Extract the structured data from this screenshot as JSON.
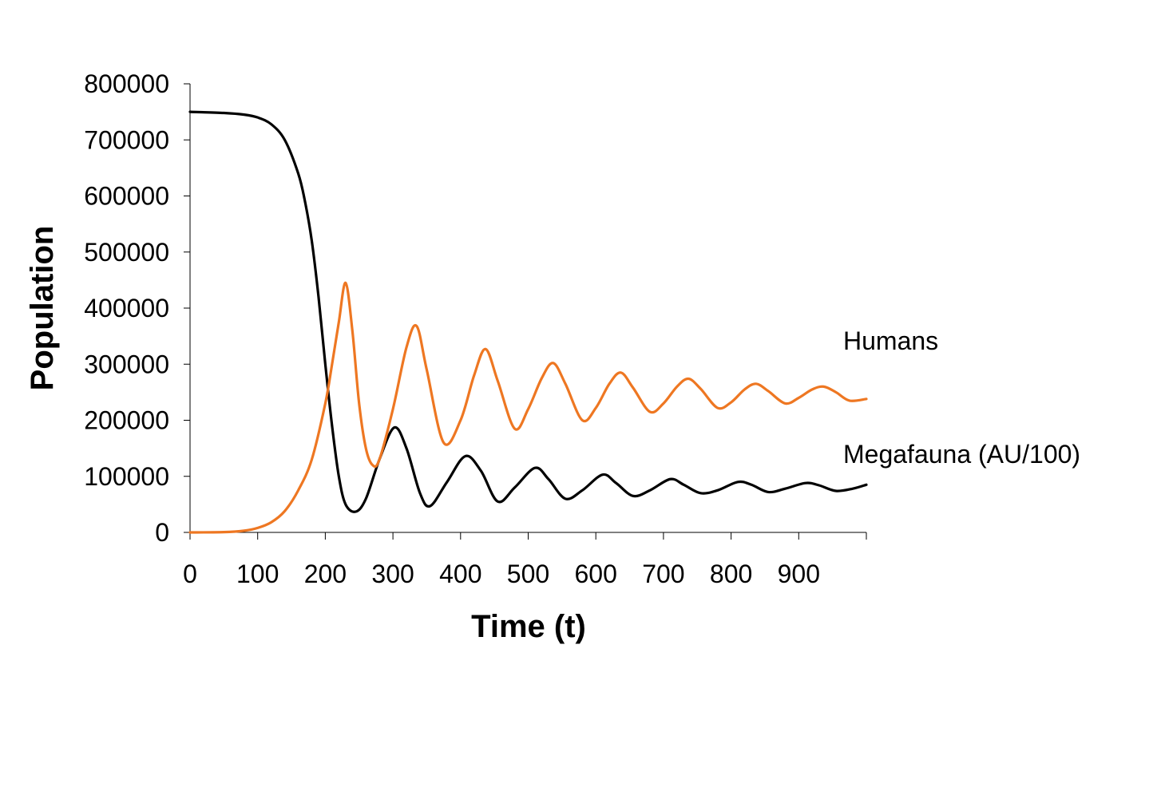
{
  "chart_data": {
    "type": "line",
    "title": "",
    "xlabel": "Time (t)",
    "ylabel": "Population",
    "xlim": [
      0,
      1000
    ],
    "ylim": [
      0,
      800000
    ],
    "x_ticks": [
      0,
      100,
      200,
      300,
      400,
      500,
      600,
      700,
      800,
      900
    ],
    "x_tick_labels": [
      "0",
      "100",
      "200",
      "300",
      "400",
      "500",
      "600",
      "700",
      "800",
      "900"
    ],
    "y_ticks": [
      0,
      100000,
      200000,
      300000,
      400000,
      500000,
      600000,
      700000,
      800000
    ],
    "y_tick_labels": [
      "0",
      "100000",
      "200000",
      "300000",
      "400000",
      "500000",
      "600000",
      "700000",
      "800000"
    ],
    "grid": false,
    "legend": "none",
    "series": [
      {
        "name": "Humans",
        "color": "#ee7722",
        "x": [
          0,
          50,
          80,
          100,
          120,
          140,
          160,
          180,
          200,
          210,
          220,
          230,
          240,
          250,
          260,
          270,
          280,
          300,
          320,
          335,
          350,
          375,
          400,
          420,
          437,
          455,
          480,
          500,
          520,
          537,
          555,
          580,
          600,
          620,
          637,
          655,
          680,
          700,
          720,
          737,
          755,
          780,
          800,
          820,
          837,
          855,
          880,
          900,
          920,
          937,
          955,
          975,
          1000
        ],
        "y": [
          0,
          500,
          3000,
          8000,
          18000,
          38000,
          75000,
          130000,
          230000,
          300000,
          375000,
          445000,
          360000,
          230000,
          150000,
          120000,
          130000,
          220000,
          330000,
          368000,
          290000,
          160000,
          200000,
          280000,
          327000,
          270000,
          185000,
          220000,
          275000,
          302000,
          265000,
          200000,
          222000,
          265000,
          285000,
          258000,
          215000,
          230000,
          260000,
          274000,
          256000,
          222000,
          232000,
          255000,
          265000,
          252000,
          230000,
          240000,
          255000,
          260000,
          250000,
          235000,
          238000
        ]
      },
      {
        "name": "Megafauna (AU/100)",
        "color": "#000000",
        "x": [
          0,
          50,
          80,
          100,
          120,
          140,
          160,
          170,
          180,
          190,
          200,
          210,
          220,
          230,
          245,
          260,
          280,
          302,
          320,
          340,
          355,
          380,
          407,
          430,
          455,
          480,
          510,
          530,
          555,
          580,
          610,
          630,
          655,
          680,
          710,
          730,
          755,
          780,
          810,
          830,
          855,
          880,
          910,
          930,
          955,
          980,
          1000
        ],
        "y": [
          750000,
          748000,
          745000,
          740000,
          728000,
          700000,
          640000,
          590000,
          520000,
          420000,
          300000,
          190000,
          100000,
          50000,
          37000,
          60000,
          130000,
          187000,
          150000,
          70000,
          47000,
          90000,
          136000,
          110000,
          55000,
          80000,
          115000,
          95000,
          60000,
          75000,
          103000,
          88000,
          65000,
          75000,
          95000,
          85000,
          70000,
          75000,
          90000,
          85000,
          72000,
          78000,
          88000,
          84000,
          74000,
          78000,
          85000
        ]
      }
    ]
  }
}
